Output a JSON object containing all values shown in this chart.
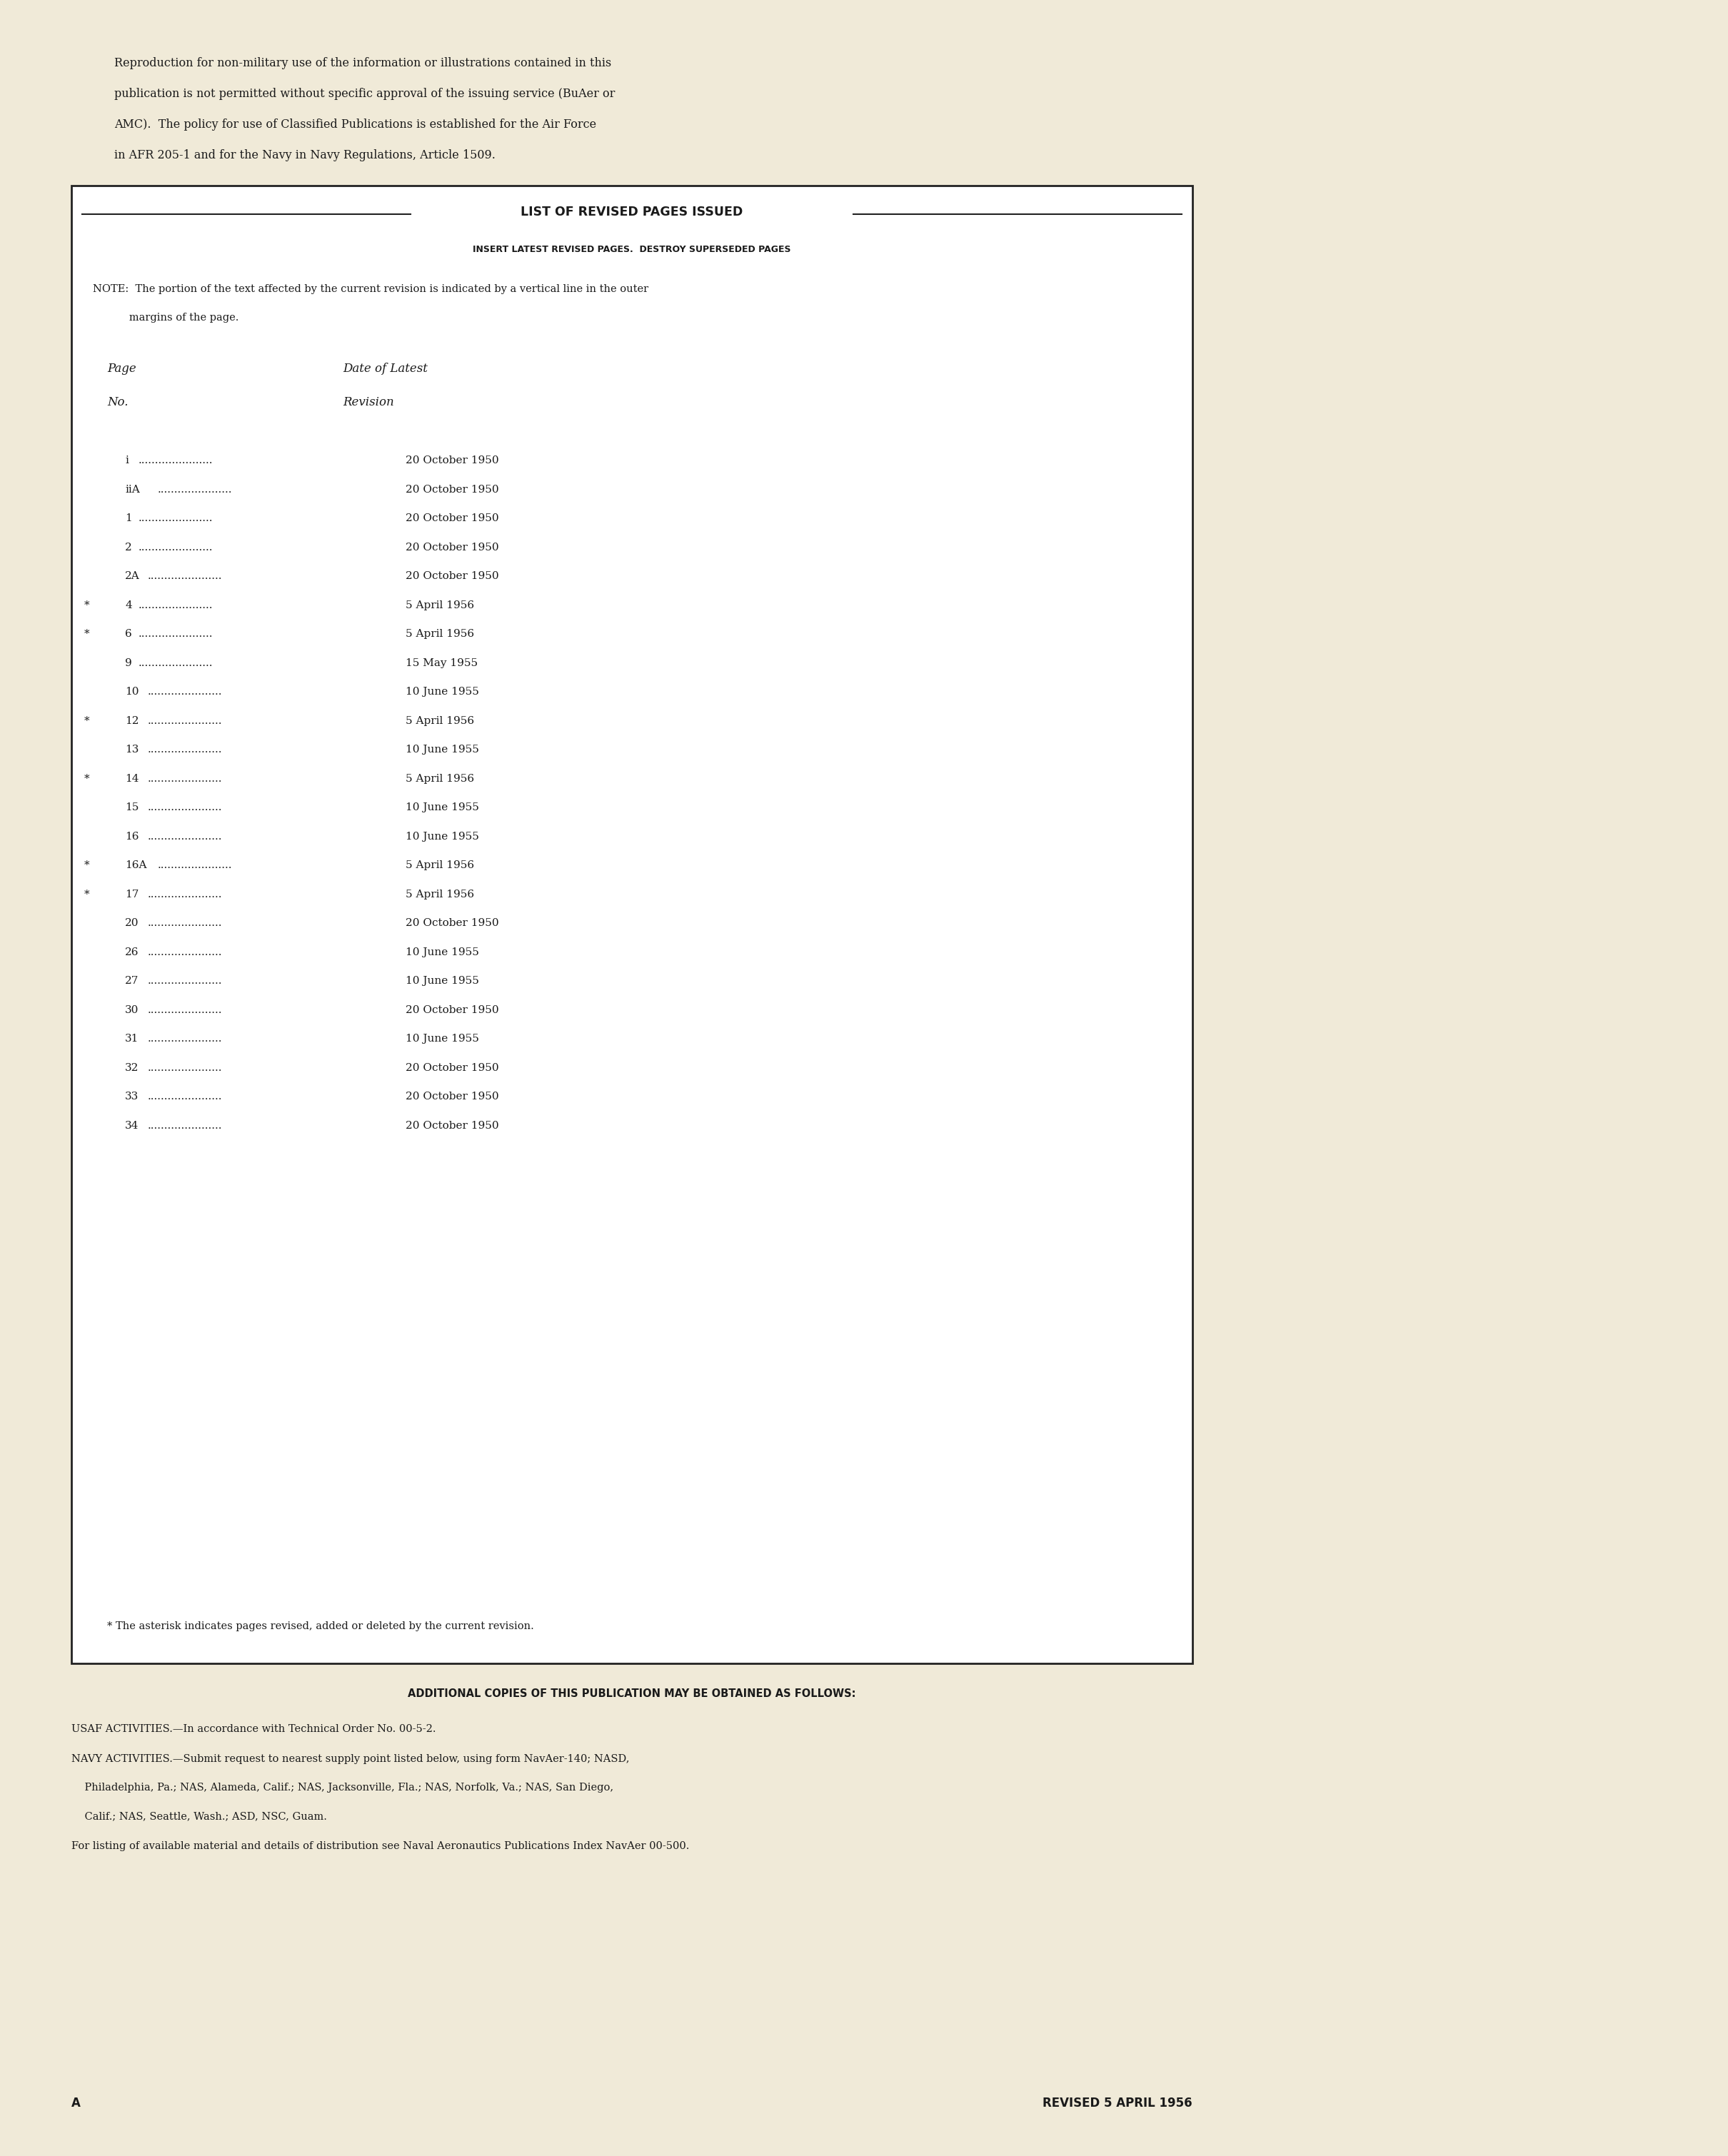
{
  "bg_color": "#f0ead8",
  "box_bg": "#ffffff",
  "text_color": "#1a1a1a",
  "box_title": "LIST OF REVISED PAGES ISSUED",
  "box_subtitle": "INSERT LATEST REVISED PAGES.  DESTROY SUPERSEDED PAGES",
  "note_line1": "NOTE:  The portion of the text affected by the current revision is indicated by a vertical line in the outer",
  "note_line2": "           margins of the page.",
  "col_header1": "Page",
  "col_header2": "Date of Latest",
  "col_header3": "No.",
  "col_header4": "Revision",
  "page_entries": [
    {
      "page": "i",
      "date": "20 October 1950",
      "asterisk": false
    },
    {
      "page": "iiA",
      "date": "20 October 1950",
      "asterisk": false
    },
    {
      "page": "1",
      "date": "20 October 1950",
      "asterisk": false
    },
    {
      "page": "2",
      "date": "20 October 1950",
      "asterisk": false
    },
    {
      "page": "2A",
      "date": "20 October 1950",
      "asterisk": false
    },
    {
      "page": "4",
      "date": "5 April 1956",
      "asterisk": true
    },
    {
      "page": "6",
      "date": "5 April 1956",
      "asterisk": true
    },
    {
      "page": "9",
      "date": "15 May 1955",
      "asterisk": false
    },
    {
      "page": "10",
      "date": "10 June 1955",
      "asterisk": false
    },
    {
      "page": "12",
      "date": "5 April 1956",
      "asterisk": true
    },
    {
      "page": "13",
      "date": "10 June 1955",
      "asterisk": false
    },
    {
      "page": "14",
      "date": "5 April 1956",
      "asterisk": true
    },
    {
      "page": "15",
      "date": "10 June 1955",
      "asterisk": false
    },
    {
      "page": "16",
      "date": "10 June 1955",
      "asterisk": false
    },
    {
      "page": "16A",
      "date": "5 April 1956",
      "asterisk": true
    },
    {
      "page": "17",
      "date": "5 April 1956",
      "asterisk": true
    },
    {
      "page": "20",
      "date": "20 October 1950",
      "asterisk": false
    },
    {
      "page": "26",
      "date": "10 June 1955",
      "asterisk": false
    },
    {
      "page": "27",
      "date": "10 June 1955",
      "asterisk": false
    },
    {
      "page": "30",
      "date": "20 October 1950",
      "asterisk": false
    },
    {
      "page": "31",
      "date": "10 June 1955",
      "asterisk": false
    },
    {
      "page": "32",
      "date": "20 October 1950",
      "asterisk": false
    },
    {
      "page": "33",
      "date": "20 October 1950",
      "asterisk": false
    },
    {
      "page": "34",
      "date": "20 October 1950",
      "asterisk": false
    }
  ],
  "footnote": "* The asterisk indicates pages revised, added or deleted by the current revision.",
  "top_lines": [
    "Reproduction for non-military use of the information or illustrations contained in this",
    "publication is not permitted without specific approval of the issuing service (BuAer or",
    "AMC).  The policy for use of Classified Publications is established for the Air Force",
    "in AFR 205-1 and for the Navy in Navy Regulations, Article 1509."
  ],
  "bottom_line1": "ADDITIONAL COPIES OF THIS PUBLICATION MAY BE OBTAINED AS FOLLOWS:",
  "bottom_usaf": "USAF ACTIVITIES.—In accordance with Technical Order No. 00-5-2.",
  "bottom_navy_lines": [
    "NAVY ACTIVITIES.—Submit request to nearest supply point listed below, using form NavAer-140; NASD,",
    "    Philadelphia, Pa.; NAS, Alameda, Calif.; NAS, Jacksonville, Fla.; NAS, Norfolk, Va.; NAS, San Diego,",
    "    Calif.; NAS, Seattle, Wash.; ASD, NSC, Guam."
  ],
  "bottom_for": "For listing of available material and details of distribution see Naval Aeronautics Publications Index NavAer 00-500.",
  "bottom_left": "A",
  "bottom_right": "REVISED 5 APRIL 1956"
}
